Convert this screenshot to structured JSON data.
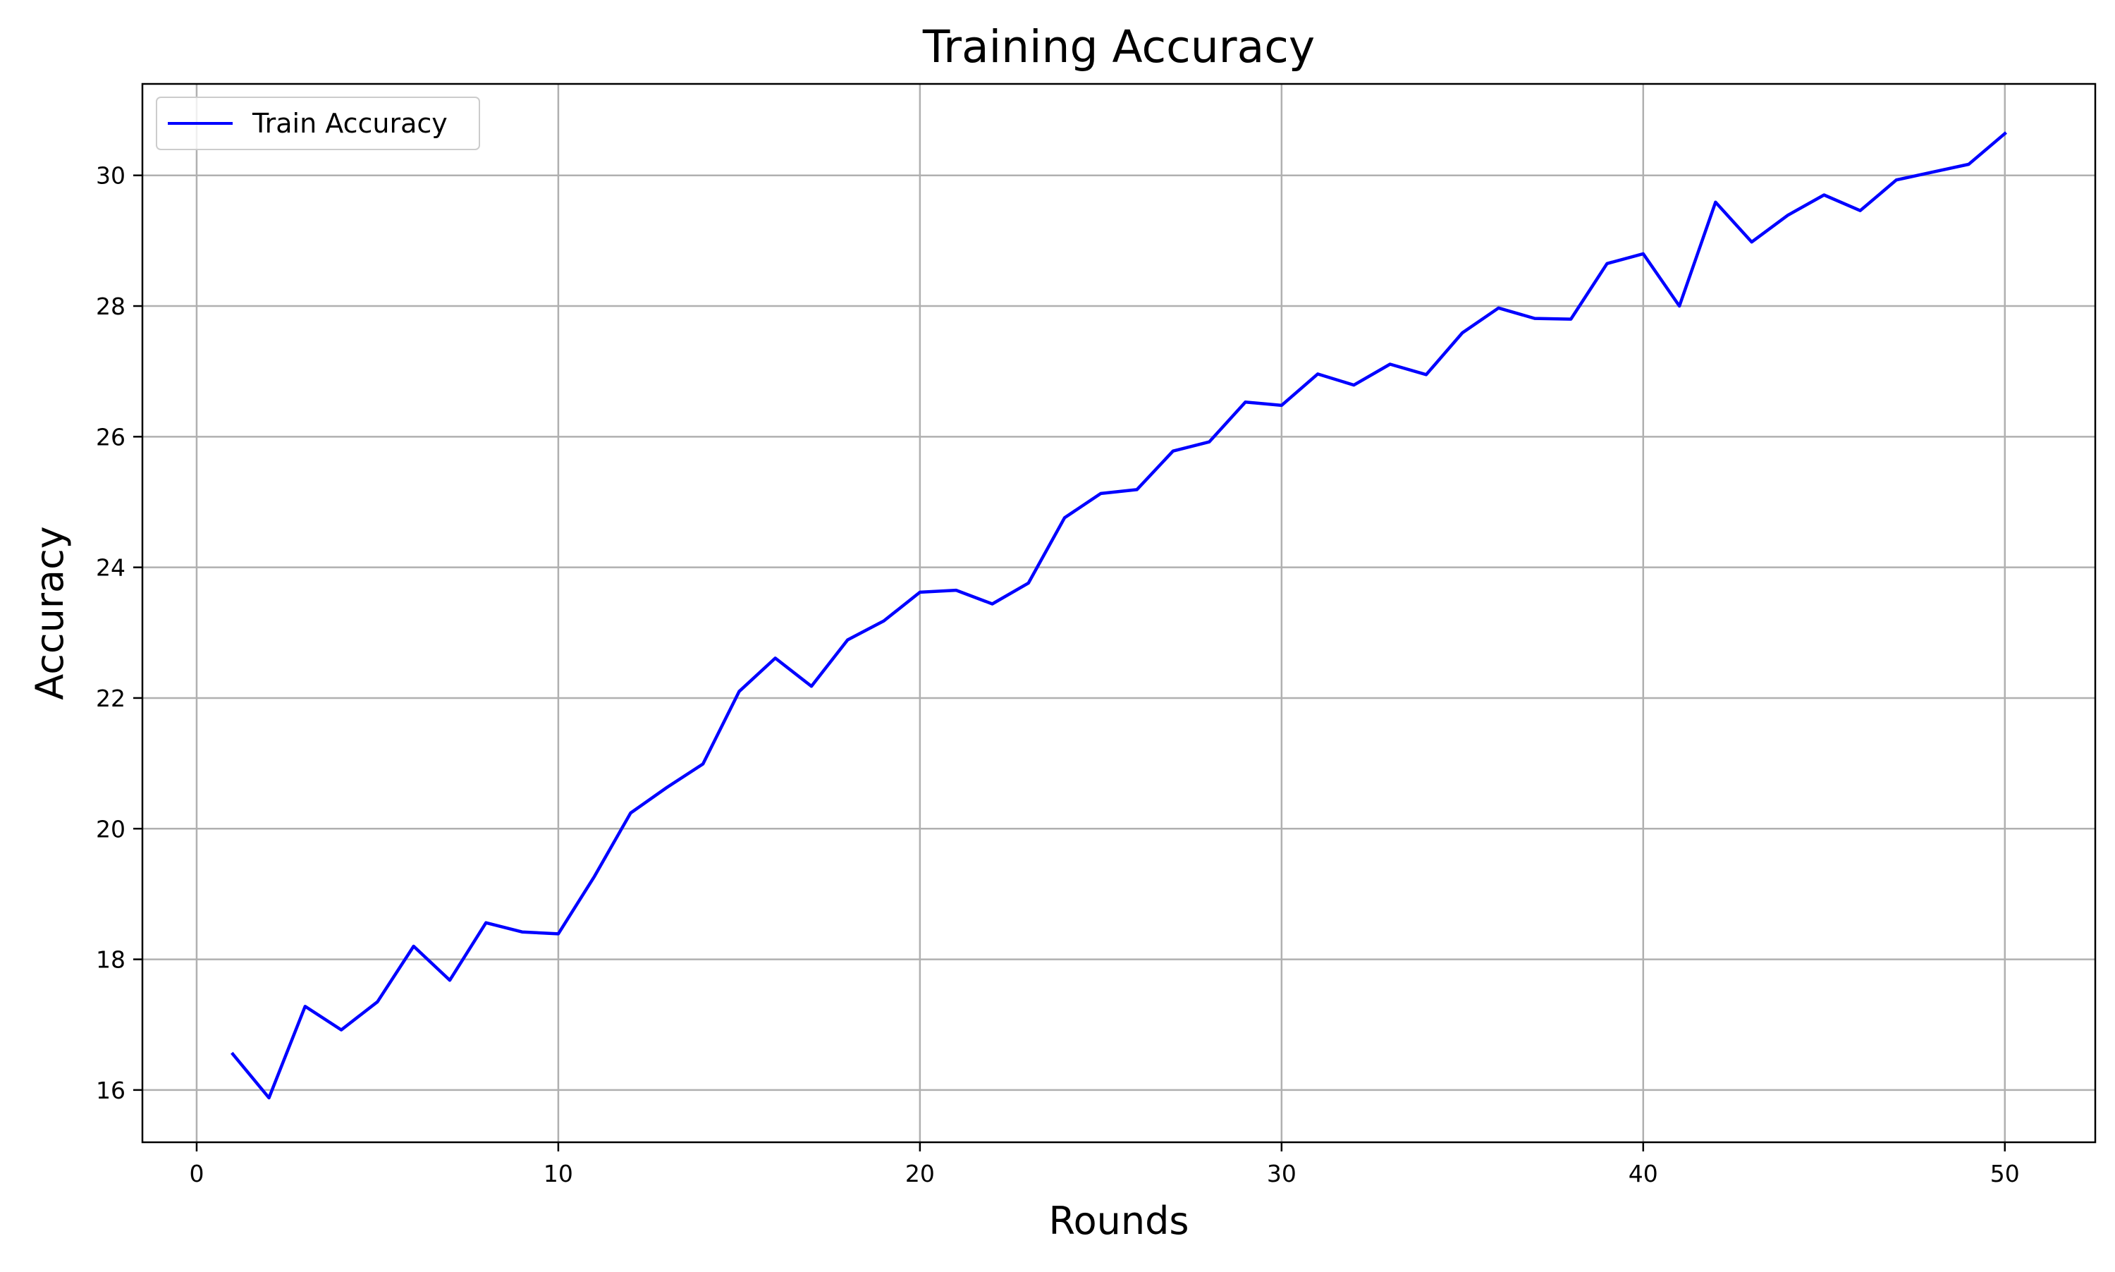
{
  "chart_data": {
    "type": "line",
    "title": "Training Accuracy",
    "xlabel": "Rounds",
    "ylabel": "Accuracy",
    "xlim": [
      -1.5,
      52.5
    ],
    "ylim": [
      15.2,
      31.4
    ],
    "grid": true,
    "legend_position": "top-left",
    "x_ticks": [
      0,
      10,
      20,
      30,
      40,
      50
    ],
    "y_ticks": [
      16,
      18,
      20,
      22,
      24,
      26,
      28,
      30
    ],
    "series": [
      {
        "name": "Train Accuracy",
        "color": "#0000ff",
        "x": [
          1,
          2,
          3,
          4,
          5,
          6,
          7,
          8,
          9,
          10,
          11,
          12,
          13,
          14,
          15,
          16,
          17,
          18,
          19,
          20,
          21,
          22,
          23,
          24,
          25,
          26,
          27,
          28,
          29,
          30,
          31,
          32,
          33,
          34,
          35,
          36,
          37,
          38,
          39,
          40,
          41,
          42,
          43,
          44,
          45,
          46,
          47,
          48,
          49,
          50
        ],
        "y": [
          16.55,
          15.88,
          17.28,
          16.92,
          17.35,
          18.2,
          17.68,
          18.56,
          18.42,
          18.39,
          19.27,
          20.24,
          20.63,
          20.99,
          22.1,
          22.61,
          22.18,
          22.89,
          23.18,
          23.62,
          23.65,
          23.44,
          23.76,
          24.76,
          25.13,
          25.19,
          25.78,
          25.92,
          26.53,
          26.48,
          26.96,
          26.79,
          27.11,
          26.95,
          27.59,
          27.97,
          27.81,
          27.8,
          28.65,
          28.8,
          28.0,
          29.59,
          28.98,
          29.39,
          29.7,
          29.46,
          29.93,
          30.05,
          30.17,
          30.64
        ]
      }
    ]
  }
}
